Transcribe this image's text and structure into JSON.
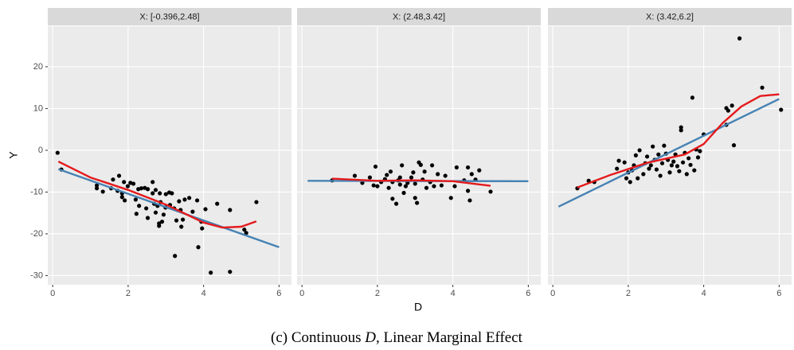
{
  "chart_data": [
    {
      "type": "scatter",
      "title": "X: [-0.396,2.48]",
      "x": [
        0.13,
        0.23,
        1.17,
        1.17,
        1.33,
        1.55,
        1.6,
        1.76,
        1.72,
        1.84,
        1.89,
        1.84,
        1.91,
        1.99,
        2.06,
        2.14,
        2.2,
        2.22,
        2.27,
        2.35,
        2.29,
        2.44,
        2.48,
        2.52,
        2.52,
        2.65,
        2.65,
        2.69,
        2.73,
        2.73,
        2.78,
        2.82,
        2.82,
        2.84,
        2.86,
        2.9,
        2.94,
        2.99,
        3.0,
        3.09,
        3.11,
        3.16,
        3.22,
        3.24,
        3.28,
        3.35,
        3.39,
        3.41,
        3.45,
        3.5,
        3.62,
        3.71,
        3.83,
        3.86,
        3.94,
        3.96,
        4.05,
        4.19,
        4.36,
        4.7,
        4.7,
        5.08,
        5.13,
        5.4
      ],
      "y": [
        -0.6,
        -4.6,
        -8.4,
        -9.1,
        -9.9,
        -9.1,
        -7,
        -6.1,
        -9.7,
        -11.2,
        -7.6,
        -10.3,
        -12,
        -8.6,
        -7.8,
        -8,
        -11.8,
        -15.2,
        -9.3,
        -9.1,
        -13.3,
        -9,
        -13.9,
        -16.2,
        -9.3,
        -7.6,
        -10.3,
        -12.8,
        -9.5,
        -14.9,
        -13.3,
        -17.5,
        -18.1,
        -10.3,
        -12.4,
        -17.1,
        -15.4,
        -13.7,
        -10.5,
        -10.1,
        -13.1,
        -10.3,
        -13.9,
        -25.3,
        -16.8,
        -12.2,
        -14.3,
        -18.3,
        -16.6,
        -11.8,
        -11.4,
        -14.7,
        -12,
        -23.2,
        -17.1,
        -18.7,
        -14.1,
        -29.3,
        -12.8,
        -14.3,
        -29.1,
        -19,
        -19.8,
        -12.4
      ],
      "color": "#000000",
      "lines": [
        {
          "color": "#4682b4",
          "x": [
            0.15,
            6.0
          ],
          "y": [
            -4.5,
            -23.2
          ]
        },
        {
          "color": "#e41a1c",
          "x": [
            0.15,
            1,
            2,
            3,
            4,
            4.5,
            5,
            5.4
          ],
          "y": [
            -2.7,
            -6.5,
            -9.5,
            -13,
            -17.3,
            -18.5,
            -18.3,
            -17
          ]
        }
      ],
      "xlim": [
        -0.13,
        6.33
      ],
      "xticks": [
        0,
        2,
        4,
        6
      ],
      "ylim": [
        -32.2,
        29.7
      ],
      "yticks": [
        -30,
        -20,
        -10,
        0,
        10,
        20
      ],
      "grid": true
    },
    {
      "type": "scatter",
      "title": "X: (2.48,3.42]",
      "x": [
        0.8,
        1.4,
        1.6,
        1.8,
        1.9,
        1.95,
        2.0,
        2.1,
        2.2,
        2.25,
        2.3,
        2.35,
        2.4,
        2.4,
        2.5,
        2.55,
        2.6,
        2.6,
        2.65,
        2.7,
        2.75,
        2.8,
        2.9,
        2.95,
        3.0,
        3.0,
        3.05,
        3.1,
        3.15,
        3.2,
        3.25,
        3.3,
        3.4,
        3.45,
        3.5,
        3.6,
        3.7,
        3.8,
        3.95,
        4.05,
        4.1,
        4.3,
        4.4,
        4.4,
        4.45,
        4.5,
        4.6,
        4.7,
        5.0
      ],
      "y": [
        -7.2,
        -6.1,
        -7.8,
        -6.5,
        -8.4,
        -3.9,
        -8.6,
        -7.6,
        -6.9,
        -5.9,
        -9.0,
        -5.1,
        -7.6,
        -11.6,
        -12.8,
        -7.2,
        -6.5,
        -8.2,
        -3.6,
        -10.2,
        -8.6,
        -7.8,
        -6.5,
        -5.3,
        -11.4,
        -8.0,
        -12.6,
        -2.9,
        -3.5,
        -7.0,
        -5.1,
        -9.0,
        -7.6,
        -3.6,
        -8.6,
        -5.7,
        -8.4,
        -6.1,
        -11.4,
        -8.6,
        -4.1,
        -7.2,
        -9.7,
        -4.1,
        -12.0,
        -5.7,
        -7.0,
        -4.8,
        -9.9
      ],
      "color": "#000000",
      "lines": [
        {
          "color": "#4682b4",
          "x": [
            0.15,
            6.0
          ],
          "y": [
            -7.3,
            -7.4
          ]
        },
        {
          "color": "#e41a1c",
          "x": [
            0.8,
            2,
            3,
            4,
            5
          ],
          "y": [
            -6.8,
            -7.3,
            -7.2,
            -7.4,
            -8.5
          ]
        }
      ],
      "xlim": [
        -0.13,
        6.33
      ],
      "xticks": [
        0,
        2,
        4,
        6
      ],
      "ylim": [
        -32.2,
        29.7
      ],
      "yticks": [
        -30,
        -20,
        -10,
        0,
        10,
        20
      ],
      "grid": true
    },
    {
      "type": "scatter",
      "title": "X: (3.42,6.2]",
      "x": [
        0.65,
        0.95,
        1.1,
        1.7,
        1.75,
        1.9,
        1.95,
        2.0,
        2.05,
        2.1,
        2.15,
        2.2,
        2.25,
        2.3,
        2.4,
        2.45,
        2.5,
        2.55,
        2.6,
        2.65,
        2.7,
        2.75,
        2.8,
        2.85,
        2.9,
        2.95,
        3.0,
        3.05,
        3.1,
        3.15,
        3.2,
        3.25,
        3.3,
        3.35,
        3.4,
        3.4,
        3.45,
        3.5,
        3.55,
        3.6,
        3.65,
        3.7,
        3.75,
        3.8,
        3.85,
        3.9,
        4.0,
        4.6,
        4.6,
        4.65,
        4.75,
        4.8,
        4.95,
        5.55,
        6.05
      ],
      "y": [
        -9.1,
        -7.3,
        -7.6,
        -4.4,
        -2.5,
        -2.9,
        -6.7,
        -5.3,
        -7.6,
        -4.8,
        -3.6,
        -1.2,
        -6.7,
        0.0,
        -5.7,
        -3.1,
        -1.5,
        -4.4,
        -3.6,
        0.9,
        -2.3,
        -4.6,
        -1.0,
        -6.1,
        -3.1,
        1.1,
        -0.8,
        -2.3,
        -5.3,
        -3.6,
        -2.7,
        -1.0,
        -3.8,
        -5.0,
        4.8,
        5.5,
        -2.9,
        -0.6,
        -5.7,
        -1.9,
        -3.5,
        12.6,
        -4.8,
        0.2,
        -1.7,
        -0.2,
        3.8,
        6.1,
        10.1,
        9.5,
        10.7,
        1.2,
        26.8,
        15.0,
        9.7
      ],
      "color": "#000000",
      "lines": [
        {
          "color": "#4682b4",
          "x": [
            0.15,
            6.0
          ],
          "y": [
            -13.5,
            12.3
          ]
        },
        {
          "color": "#e41a1c",
          "x": [
            0.65,
            1.5,
            2.5,
            3.5,
            4,
            4.5,
            5,
            5.5,
            6
          ],
          "y": [
            -8.9,
            -6,
            -3,
            -1,
            1.5,
            6.5,
            10.5,
            13,
            13.4
          ]
        }
      ],
      "xlim": [
        -0.13,
        6.33
      ],
      "xticks": [
        0,
        2,
        4,
        6
      ],
      "ylim": [
        -32.2,
        29.7
      ],
      "yticks": [
        -30,
        -20,
        -10,
        0,
        10,
        20
      ],
      "grid": true
    }
  ],
  "xlabel": "D",
  "ylabel": "Y",
  "caption": [
    "(c) Continuous ",
    "D",
    ", Linear Marginal Effect"
  ]
}
